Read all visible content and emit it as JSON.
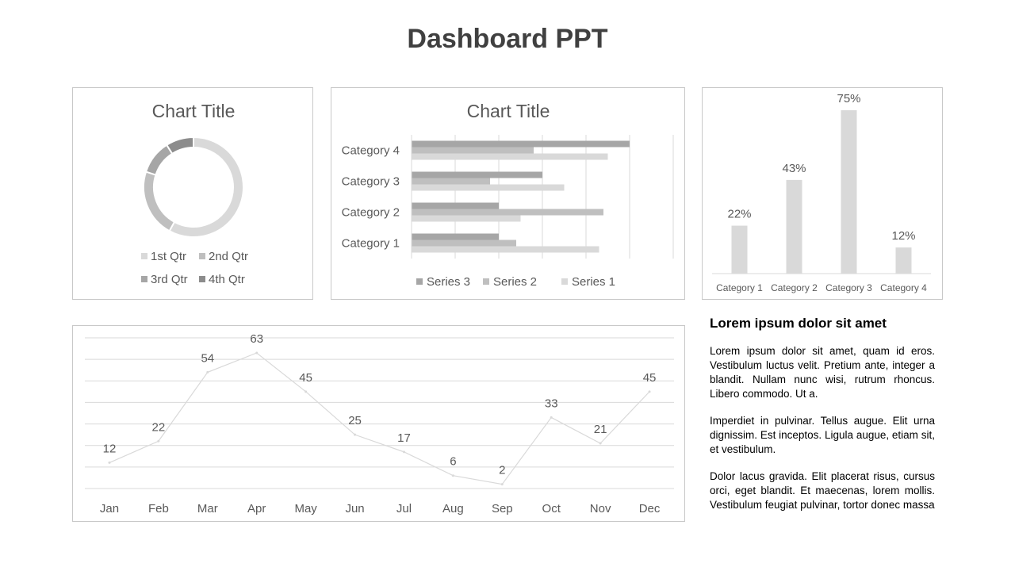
{
  "page": {
    "title": "Dashboard PPT"
  },
  "chart_data": [
    {
      "type": "doughnut",
      "title": "Chart Title",
      "categories": [
        "1st Qtr",
        "2nd Qtr",
        "3rd Qtr",
        "4th Qtr"
      ],
      "values": [
        58,
        22,
        11,
        9
      ],
      "colors": [
        "#d9d9d9",
        "#bfbfbf",
        "#a6a6a6",
        "#8c8c8c"
      ],
      "legend": "bottom"
    },
    {
      "type": "bar",
      "orientation": "horizontal",
      "title": "Chart Title",
      "categories": [
        "Category 1",
        "Category 2",
        "Category 3",
        "Category 4"
      ],
      "series": [
        {
          "name": "Series 1",
          "values": [
            4.3,
            2.5,
            3.5,
            4.5
          ],
          "color": "#d9d9d9"
        },
        {
          "name": "Series 2",
          "values": [
            2.4,
            4.4,
            1.8,
            2.8
          ],
          "color": "#bfbfbf"
        },
        {
          "name": "Series 3",
          "values": [
            2,
            2,
            3,
            5
          ],
          "color": "#a6a6a6"
        }
      ],
      "xlim": [
        0,
        6
      ],
      "grid": true,
      "legend": "bottom",
      "legend_order": [
        "Series 3",
        "Series 2",
        "Series 1"
      ]
    },
    {
      "type": "bar",
      "categories": [
        "Category 1",
        "Category 2",
        "Category 3",
        "Category 4"
      ],
      "values": [
        22,
        43,
        75,
        12
      ],
      "data_labels": [
        "22%",
        "43%",
        "75%",
        "12%"
      ],
      "ylim": [
        0,
        75
      ],
      "color": "#d9d9d9"
    },
    {
      "type": "line",
      "categories": [
        "Jan",
        "Feb",
        "Mar",
        "Apr",
        "May",
        "Jun",
        "Jul",
        "Aug",
        "Sep",
        "Oct",
        "Nov",
        "Dec"
      ],
      "values": [
        12,
        22,
        54,
        63,
        45,
        25,
        17,
        6,
        2,
        33,
        21,
        45
      ],
      "ylim": [
        0,
        70
      ],
      "grid": true,
      "color": "#d9d9d9"
    }
  ],
  "text": {
    "heading": "Lorem ipsum dolor sit amet",
    "paragraphs": [
      "Lorem ipsum dolor sit amet, quam id eros. Vestibulum luctus velit. Pretium ante, integer a blandit. Nullam nunc wisi, rutrum rhoncus. Libero commodo. Ut a.",
      "Imperdiet in pulvinar. Tellus augue. Elit urna dignissim. Est inceptos. Ligula augue, etiam sit, et vestibulum.",
      "Dolor lacus gravida. Elit placerat risus, cursus orci, eget blandit. Et maecenas, lorem mollis. Vestibulum feugiat pulvinar, tortor donec massa"
    ]
  }
}
